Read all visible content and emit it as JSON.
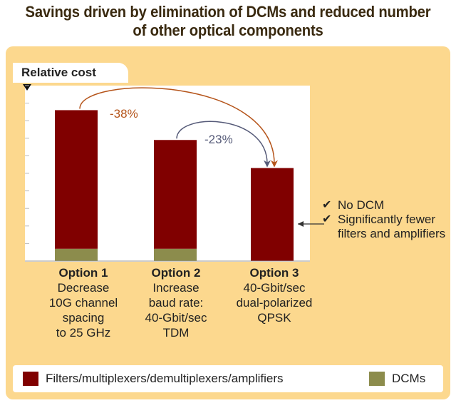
{
  "title": "Savings driven by elimination of DCMs and reduced number of other optical components",
  "chart_data": {
    "type": "bar",
    "stacked": true,
    "ylabel": "Relative cost",
    "ylim": [
      0,
      10
    ],
    "categories": [
      "Option 1",
      "Option 2",
      "Option 3"
    ],
    "category_descriptions": [
      "Decrease\n10G channel\nspacing\nto 25 GHz",
      "Increase\nbaud rate:\n40-Gbit/sec\nTDM",
      "40-Gbit/sec\ndual-polarized\nQPSK"
    ],
    "series": [
      {
        "name": "DCMs",
        "values": [
          0.7,
          0.7,
          0
        ]
      },
      {
        "name": "Filters/multiplexers/demultiplexers/amplifiers",
        "values": [
          7.9,
          6.2,
          5.3
        ]
      }
    ],
    "annotations": [
      {
        "label": "-38%",
        "from": "Option 1",
        "to": "Option 3"
      },
      {
        "label": "-23%",
        "from": "Option 2",
        "to": "Option 3"
      }
    ],
    "callout": [
      "No DCM",
      "Significantly fewer filters and amplifiers"
    ],
    "legend_position": "bottom"
  },
  "colors": {
    "filters": "#800000",
    "dcms": "#8c8c4c",
    "panel": "#fcd88e",
    "arrow_38": "#b5541a",
    "arrow_23": "#555a78"
  }
}
